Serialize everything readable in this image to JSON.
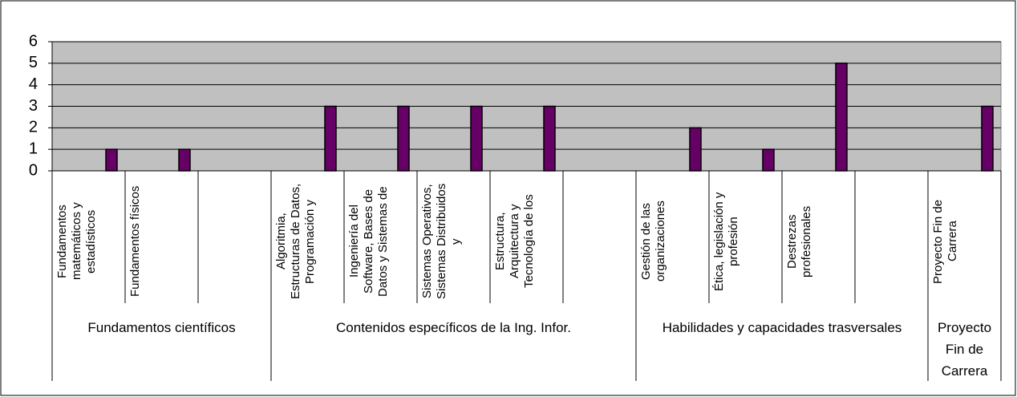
{
  "chart_data": {
    "type": "bar",
    "categories": [
      "Fundamentos matemáticos y estadísticos",
      "Fundamentos físicos",
      null,
      "Algoritmia, Estructuras de Datos, Programación y",
      "Ingeniería del Software, Bases de Datos y Sistemas de",
      "Sistemas Operativos, Sistemas Distribuidos y",
      "Estructura, Arquitectura y Tecnología de los",
      null,
      "Gestión de las organizaciones",
      "Ética, legislación y profesión",
      "Destrezas profesionales",
      null,
      "Proyecto Fin de Carrera"
    ],
    "values": [
      1,
      1,
      null,
      3,
      3,
      3,
      3,
      null,
      2,
      1,
      5,
      null,
      3
    ],
    "groups": [
      {
        "label": "Fundamentos científicos",
        "span": 3
      },
      {
        "label": "Contenidos específicos de la Ing. Infor.",
        "span": 5
      },
      {
        "label": "Habilidades y capacidades trasversales",
        "span": 4
      },
      {
        "label": "Proyecto Fin de Carrera",
        "span": 1
      }
    ],
    "color": "#660066",
    "ylim": [
      0,
      6
    ],
    "yticks": [
      0,
      1,
      2,
      3,
      4,
      5,
      6
    ],
    "grid": true
  }
}
